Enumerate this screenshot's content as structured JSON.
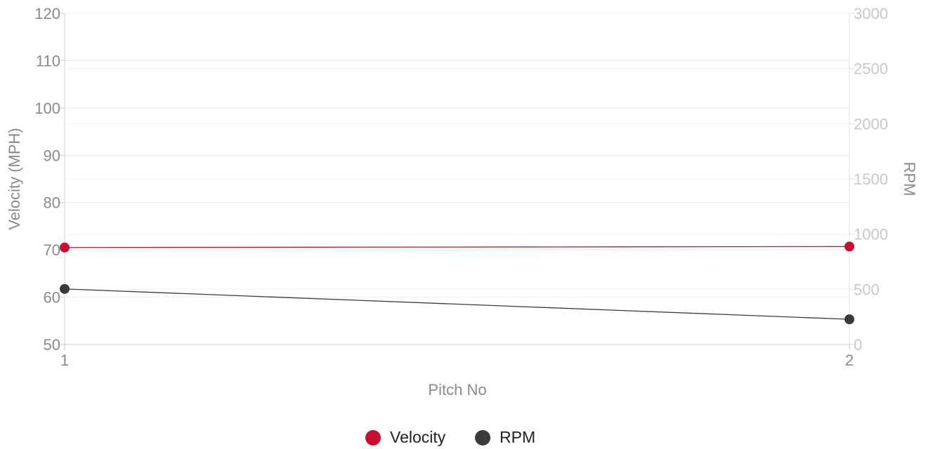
{
  "chart_data": {
    "type": "line",
    "x": [
      1,
      2
    ],
    "xlabel": "Pitch No",
    "x_ticks": [
      "1",
      "2"
    ],
    "series": [
      {
        "name": "Velocity",
        "axis": "left",
        "values": [
          70.5,
          70.7
        ],
        "color": "#c8102e"
      },
      {
        "name": "RPM",
        "axis": "right",
        "values": [
          503,
          228
        ],
        "color": "#3a3a3a"
      }
    ],
    "y_left": {
      "label": "Velocity (MPH)",
      "ylim": [
        50,
        120
      ],
      "ticks": [
        50,
        60,
        70,
        80,
        90,
        100,
        110,
        120
      ]
    },
    "y_right": {
      "label": "RPM",
      "ylim": [
        0,
        3000
      ],
      "ticks": [
        0,
        500,
        1000,
        1500,
        2000,
        2500,
        3000
      ]
    },
    "grid": true,
    "legend": "bottom-center"
  }
}
